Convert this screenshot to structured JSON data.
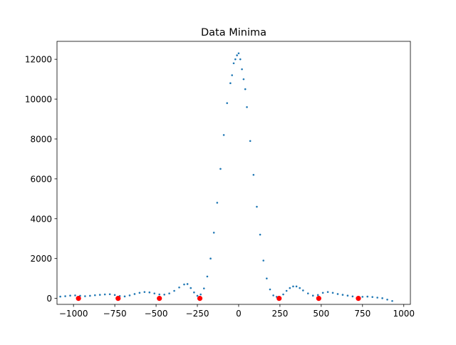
{
  "chart_data": {
    "type": "scatter",
    "title": "Data Minima",
    "xlabel": "",
    "ylabel": "",
    "xlim": [
      -1100,
      1040
    ],
    "ylim": [
      -300,
      12900
    ],
    "x_ticks": [
      -1000,
      -750,
      -500,
      -250,
      0,
      250,
      500,
      750,
      1000
    ],
    "x_tick_labels": [
      "−1000",
      "−750",
      "−500",
      "−250",
      "0",
      "250",
      "500",
      "750",
      "1000"
    ],
    "y_ticks": [
      0,
      2000,
      4000,
      6000,
      8000,
      10000,
      12000
    ],
    "y_tick_labels": [
      "0",
      "2000",
      "4000",
      "6000",
      "8000",
      "10000",
      "12000"
    ],
    "grid": false,
    "colors": {
      "data": "#1f77b4",
      "minima": "#ff0000"
    },
    "series": [
      {
        "style": "dots",
        "color": "#1f77b4",
        "x": [
          -1080,
          -1050,
          -1020,
          -990,
          -960,
          -930,
          -900,
          -870,
          -840,
          -810,
          -780,
          -750,
          -720,
          -690,
          -660,
          -630,
          -600,
          -570,
          -540,
          -510,
          -480,
          -450,
          -420,
          -390,
          -360,
          -330,
          -310,
          -290,
          -270,
          -250,
          -230,
          -210,
          -190,
          -170,
          -150,
          -130,
          -110,
          -90,
          -70,
          -50,
          -40,
          -30,
          -20,
          -10,
          0,
          10,
          20,
          30,
          40,
          50,
          70,
          90,
          110,
          130,
          150,
          170,
          190,
          210,
          230,
          250,
          270,
          290,
          310,
          330,
          350,
          370,
          390,
          420,
          450,
          480,
          510,
          540,
          570,
          600,
          630,
          660,
          690,
          720,
          750,
          780,
          810,
          840,
          870,
          900,
          930
        ],
        "y": [
          90,
          110,
          140,
          150,
          130,
          110,
          130,
          160,
          180,
          200,
          210,
          170,
          120,
          100,
          150,
          220,
          280,
          320,
          300,
          250,
          200,
          190,
          250,
          380,
          550,
          700,
          720,
          520,
          300,
          130,
          200,
          500,
          1100,
          2000,
          3300,
          4800,
          6500,
          8200,
          9800,
          10800,
          11200,
          11800,
          12000,
          12200,
          12300,
          12000,
          11500,
          11000,
          10500,
          9600,
          7900,
          6200,
          4600,
          3200,
          1900,
          1000,
          450,
          150,
          80,
          30,
          200,
          380,
          520,
          600,
          600,
          520,
          400,
          250,
          140,
          170,
          280,
          320,
          280,
          220,
          180,
          140,
          100,
          60,
          80,
          90,
          70,
          40,
          10,
          -60,
          -130
        ]
      },
      {
        "style": "markers",
        "color": "#ff0000",
        "x": [
          -970,
          -730,
          -480,
          -235,
          245,
          485,
          725
        ],
        "y": [
          0,
          0,
          0,
          0,
          0,
          0,
          0
        ]
      }
    ]
  }
}
